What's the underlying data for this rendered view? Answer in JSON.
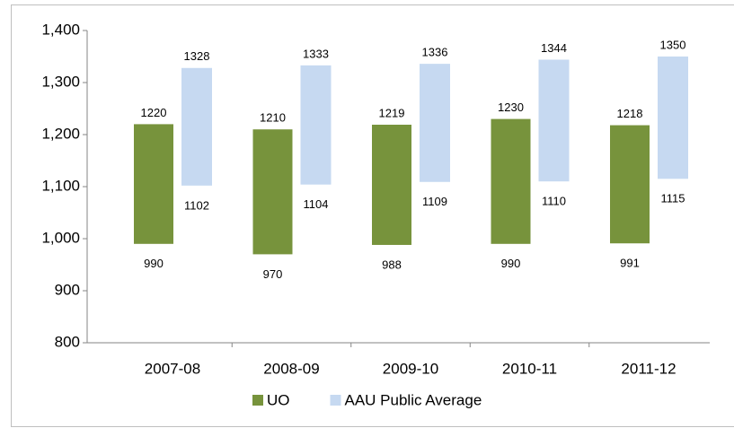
{
  "chart_data": {
    "type": "floating_bar",
    "categories": [
      "2007-08",
      "2008-09",
      "2009-10",
      "2010-11",
      "2011-12"
    ],
    "series": [
      {
        "name": "UO",
        "color": "#77933c",
        "low": [
          990,
          970,
          988,
          990,
          991
        ],
        "high": [
          1220,
          1210,
          1219,
          1230,
          1218
        ]
      },
      {
        "name": "AAU Public Average",
        "color": "#c6d9f1",
        "low": [
          1102,
          1104,
          1109,
          1110,
          1115
        ],
        "high": [
          1328,
          1333,
          1336,
          1344,
          1350
        ]
      }
    ],
    "ylim": [
      800,
      1400
    ],
    "yticks": [
      800,
      900,
      {
        "value": 1000,
        "label": "1,000"
      },
      {
        "value": 1100,
        "label": "1,100"
      },
      {
        "value": 1200,
        "label": "1,200"
      },
      {
        "value": 1300,
        "label": "1,300"
      },
      {
        "value": 1400,
        "label": "1,400"
      }
    ],
    "legend": "bottom"
  }
}
